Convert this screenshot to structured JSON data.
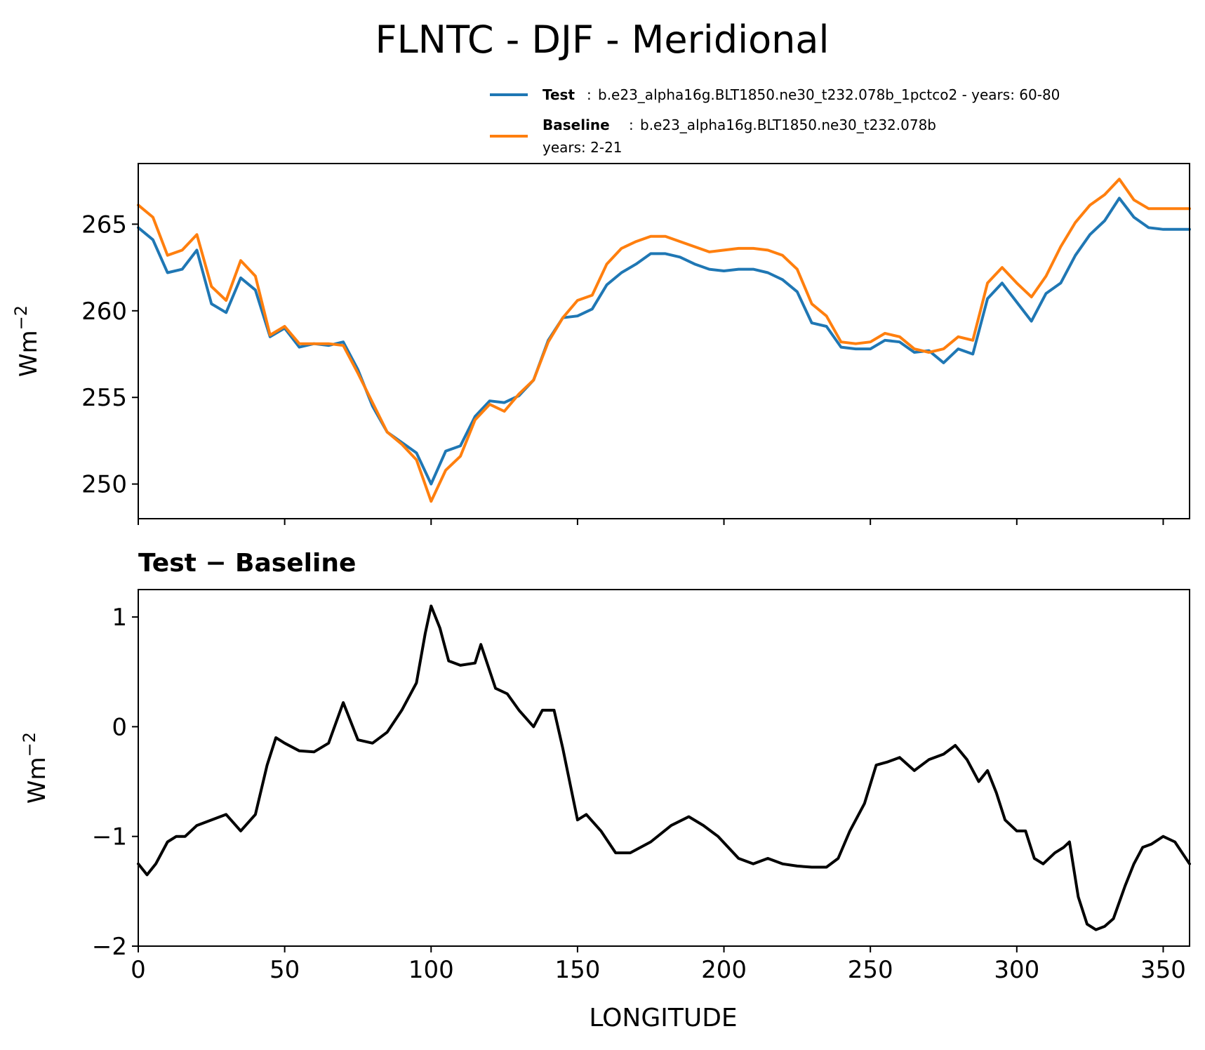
{
  "title": "FLNTC - DJF - Meridional",
  "legend": {
    "entries": [
      {
        "name": "Test",
        "separator": ":",
        "description": "b.e23_alpha16g.BLT1850.ne30_t232.078b_1pctco2 - years: 60-80",
        "color": "#1f77b4"
      },
      {
        "name": "Baseline",
        "separator": ":",
        "description": "b.e23_alpha16g.BLT1850.ne30_t232.078b",
        "description2": "years: 2-21",
        "color": "#ff7f0e"
      }
    ]
  },
  "chart_data": [
    {
      "type": "line",
      "title": "",
      "xlabel": "",
      "ylabel": "Wm",
      "ylabel_sup": "−2",
      "xlim": [
        0,
        359
      ],
      "ylim": [
        248,
        268.5
      ],
      "yticks": [
        250,
        255,
        260,
        265
      ],
      "ytick_labels": [
        "250",
        "255",
        "260",
        "265"
      ],
      "xticks": [
        0,
        50,
        100,
        150,
        200,
        250,
        300,
        350
      ],
      "legend_position": "above-right",
      "grid": false,
      "x": [
        0,
        5,
        10,
        15,
        20,
        25,
        30,
        35,
        40,
        45,
        50,
        55,
        60,
        65,
        70,
        75,
        80,
        85,
        90,
        95,
        100,
        105,
        110,
        115,
        120,
        125,
        130,
        135,
        140,
        145,
        150,
        155,
        160,
        165,
        170,
        175,
        180,
        185,
        190,
        195,
        200,
        205,
        210,
        215,
        220,
        225,
        230,
        235,
        240,
        245,
        250,
        255,
        260,
        265,
        270,
        275,
        280,
        285,
        290,
        295,
        300,
        305,
        310,
        315,
        320,
        325,
        330,
        335,
        340,
        345,
        350,
        355,
        359
      ],
      "series": [
        {
          "name": "Test",
          "color": "#1f77b4",
          "values": [
            264.8,
            264.1,
            262.2,
            262.4,
            263.5,
            260.4,
            259.9,
            261.9,
            261.2,
            258.5,
            259.0,
            257.9,
            258.1,
            258.0,
            258.2,
            256.6,
            254.5,
            253.0,
            252.4,
            251.8,
            250.0,
            251.9,
            252.2,
            253.9,
            254.8,
            254.7,
            255.1,
            256.0,
            258.3,
            259.6,
            259.7,
            260.1,
            261.5,
            262.2,
            262.7,
            263.3,
            263.3,
            263.1,
            262.7,
            262.4,
            262.3,
            262.4,
            262.4,
            262.2,
            261.8,
            261.1,
            259.3,
            259.1,
            257.9,
            257.8,
            257.8,
            258.3,
            258.2,
            257.6,
            257.7,
            257.0,
            257.8,
            257.5,
            260.7,
            261.6,
            260.5,
            259.4,
            261.0,
            261.6,
            263.2,
            264.4,
            265.2,
            266.5,
            265.4,
            264.8,
            264.7,
            264.7,
            264.7
          ]
        },
        {
          "name": "Baseline",
          "color": "#ff7f0e",
          "values": [
            266.1,
            265.4,
            263.2,
            263.5,
            264.4,
            261.4,
            260.6,
            262.9,
            262.0,
            258.6,
            259.1,
            258.1,
            258.1,
            258.1,
            258.0,
            256.4,
            254.7,
            253.0,
            252.3,
            251.4,
            249.0,
            250.8,
            251.6,
            253.7,
            254.6,
            254.2,
            255.2,
            256.0,
            258.2,
            259.6,
            260.6,
            260.9,
            262.7,
            263.6,
            264.0,
            264.3,
            264.3,
            264.0,
            263.7,
            263.4,
            263.5,
            263.6,
            263.6,
            263.5,
            263.2,
            262.4,
            260.4,
            259.7,
            258.2,
            258.1,
            258.2,
            258.7,
            258.5,
            257.8,
            257.6,
            257.8,
            258.5,
            258.3,
            261.6,
            262.5,
            261.6,
            260.8,
            262.0,
            263.7,
            265.1,
            266.1,
            266.7,
            267.6,
            266.4,
            265.9,
            265.9,
            265.9,
            265.9
          ]
        }
      ]
    },
    {
      "type": "line",
      "title": "Test − Baseline",
      "xlabel": "LONGITUDE",
      "ylabel": "Wm",
      "ylabel_sup": "−2",
      "xlim": [
        0,
        359
      ],
      "ylim": [
        -2.0,
        1.25
      ],
      "yticks": [
        -2,
        -1,
        0,
        1
      ],
      "ytick_labels": [
        "−2",
        "−1",
        "0",
        "1"
      ],
      "xticks": [
        0,
        50,
        100,
        150,
        200,
        250,
        300,
        350
      ],
      "xtick_labels": [
        "0",
        "50",
        "100",
        "150",
        "200",
        "250",
        "300",
        "350"
      ],
      "grid": false,
      "x": [
        0,
        3,
        6,
        10,
        13,
        16,
        20,
        25,
        30,
        35,
        40,
        44,
        47,
        50,
        55,
        60,
        65,
        70,
        75,
        80,
        85,
        90,
        95,
        98,
        100,
        103,
        106,
        110,
        115,
        117,
        122,
        126,
        130,
        135,
        138,
        142,
        145,
        150,
        153,
        158,
        163,
        168,
        175,
        182,
        188,
        193,
        198,
        205,
        210,
        215,
        220,
        225,
        230,
        235,
        239,
        243,
        248,
        252,
        256,
        260,
        265,
        270,
        275,
        279,
        283,
        287,
        290,
        293,
        296,
        300,
        303,
        306,
        309,
        313,
        316,
        318,
        321,
        324,
        327,
        330,
        333,
        337,
        340,
        343,
        346,
        350,
        354,
        359
      ],
      "series": [
        {
          "name": "",
          "color": "#000000",
          "values": [
            -1.25,
            -1.35,
            -1.25,
            -1.05,
            -1.0,
            -1.0,
            -0.9,
            -0.85,
            -0.8,
            -0.95,
            -0.8,
            -0.35,
            -0.1,
            -0.15,
            -0.22,
            -0.23,
            -0.15,
            0.22,
            -0.12,
            -0.15,
            -0.05,
            0.15,
            0.4,
            0.85,
            1.1,
            0.9,
            0.6,
            0.56,
            0.58,
            0.75,
            0.35,
            0.3,
            0.15,
            0.0,
            0.15,
            0.15,
            -0.2,
            -0.85,
            -0.8,
            -0.95,
            -1.15,
            -1.15,
            -1.05,
            -0.9,
            -0.82,
            -0.9,
            -1.0,
            -1.2,
            -1.25,
            -1.2,
            -1.25,
            -1.27,
            -1.28,
            -1.28,
            -1.2,
            -0.95,
            -0.7,
            -0.35,
            -0.32,
            -0.28,
            -0.4,
            -0.3,
            -0.25,
            -0.17,
            -0.3,
            -0.5,
            -0.4,
            -0.6,
            -0.85,
            -0.95,
            -0.95,
            -1.2,
            -1.25,
            -1.15,
            -1.1,
            -1.05,
            -1.55,
            -1.8,
            -1.85,
            -1.82,
            -1.75,
            -1.45,
            -1.25,
            -1.1,
            -1.07,
            -1.0,
            -1.05,
            -1.25
          ]
        }
      ]
    }
  ]
}
